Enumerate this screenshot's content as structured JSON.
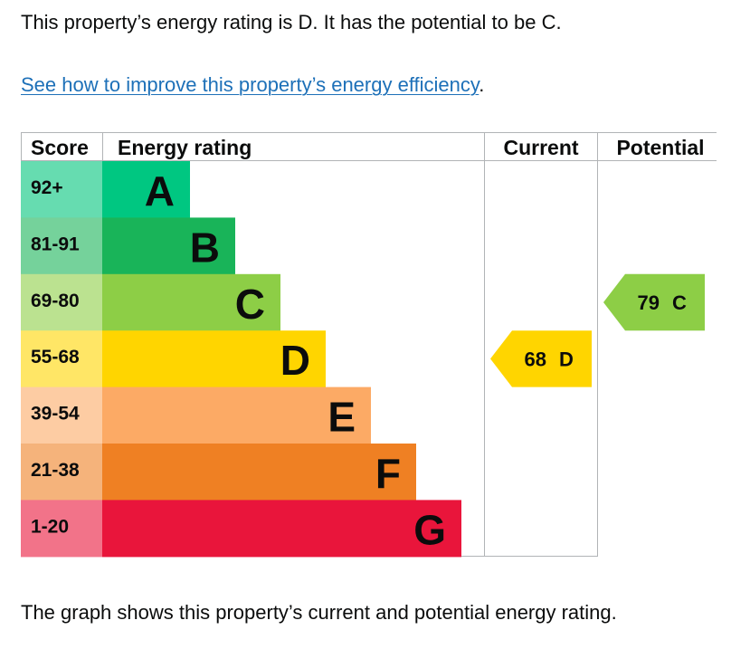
{
  "intro_text": "This property’s energy rating is D. It has the potential to be C.",
  "improve_link": "See how to improve this property’s energy efficiency",
  "improve_link_suffix": ".",
  "footer_text": "The graph shows this property’s current and potential energy rating.",
  "chart_data": {
    "type": "bar",
    "headers": {
      "score": "Score",
      "rating": "Energy rating",
      "current": "Current",
      "potential": "Potential"
    },
    "bands": [
      {
        "letter": "A",
        "score": "92+",
        "color": "#00c781",
        "score_bg": "#66dcb0"
      },
      {
        "letter": "B",
        "score": "81-91",
        "color": "#19b459",
        "score_bg": "#75d29b"
      },
      {
        "letter": "C",
        "score": "69-80",
        "color": "#8dce46",
        "score_bg": "#bbe290"
      },
      {
        "letter": "D",
        "score": "55-68",
        "color": "#ffd500",
        "score_bg": "#ffe666"
      },
      {
        "letter": "E",
        "score": "39-54",
        "color": "#fcaa65",
        "score_bg": "#fdcca3"
      },
      {
        "letter": "F",
        "score": "21-38",
        "color": "#ef8023",
        "score_bg": "#f5b37b"
      },
      {
        "letter": "G",
        "score": "1-20",
        "color": "#e9153b",
        "score_bg": "#f27389"
      }
    ],
    "current": {
      "value": 68,
      "letter": "D",
      "color": "#ffd500"
    },
    "potential": {
      "value": 79,
      "letter": "C",
      "color": "#8dce46"
    }
  }
}
